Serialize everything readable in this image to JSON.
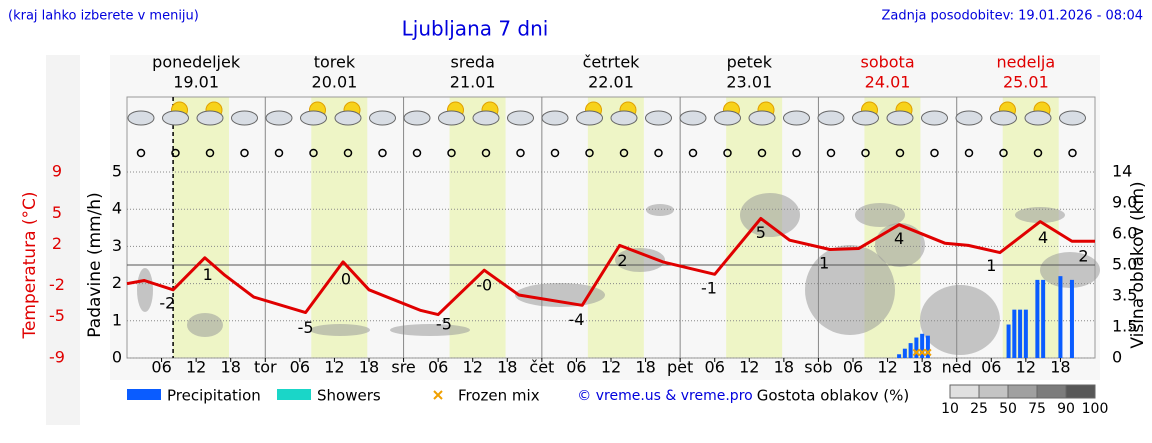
{
  "header": {
    "hint": "(kraj lahko izberete v meniju)",
    "update": "Zadnja posodobitev: 19.01.2026 - 08:04"
  },
  "chart_data": {
    "type": "meteogram",
    "title": "Ljubljana 7 dni",
    "days": [
      {
        "name": "ponedeljek",
        "date": "19.01",
        "color": "#000000"
      },
      {
        "name": "torek",
        "date": "20.01",
        "color": "#000000"
      },
      {
        "name": "sreda",
        "date": "21.01",
        "color": "#000000"
      },
      {
        "name": "četrtek",
        "date": "22.01",
        "color": "#000000"
      },
      {
        "name": "petek",
        "date": "23.01",
        "color": "#000000"
      },
      {
        "name": "sobota",
        "date": "24.01",
        "color": "#e00000"
      },
      {
        "name": "nedelja",
        "date": "25.01",
        "color": "#e00000"
      }
    ],
    "xlim": [
      0,
      168
    ],
    "xticks": [
      {
        "value": 6,
        "label": "06"
      },
      {
        "value": 12,
        "label": "12"
      },
      {
        "value": 18,
        "label": "18"
      },
      {
        "value": 24,
        "label": "tor"
      },
      {
        "value": 30,
        "label": "06"
      },
      {
        "value": 36,
        "label": "12"
      },
      {
        "value": 42,
        "label": "18"
      },
      {
        "value": 48,
        "label": "sre"
      },
      {
        "value": 54,
        "label": "06"
      },
      {
        "value": 60,
        "label": "12"
      },
      {
        "value": 66,
        "label": "18"
      },
      {
        "value": 72,
        "label": "čet"
      },
      {
        "value": 78,
        "label": "06"
      },
      {
        "value": 84,
        "label": "12"
      },
      {
        "value": 90,
        "label": "18"
      },
      {
        "value": 96,
        "label": "pet"
      },
      {
        "value": 102,
        "label": "06"
      },
      {
        "value": 108,
        "label": "12"
      },
      {
        "value": 114,
        "label": "18"
      },
      {
        "value": 120,
        "label": "sob"
      },
      {
        "value": 126,
        "label": "06"
      },
      {
        "value": 132,
        "label": "12"
      },
      {
        "value": 138,
        "label": "18"
      },
      {
        "value": 144,
        "label": "ned"
      },
      {
        "value": 150,
        "label": "06"
      },
      {
        "value": 156,
        "label": "12"
      },
      {
        "value": 162,
        "label": "18"
      }
    ],
    "now": 8,
    "ylabel": "Padavine (mm/h)",
    "ylim": [
      0,
      5
    ],
    "yticks": [
      0,
      1,
      2,
      3,
      4,
      5
    ],
    "grid": true,
    "temperature": {
      "label": "Temperatura (°C)",
      "color": "#e00000",
      "ylim": [
        -9,
        9
      ],
      "yticks": [
        9,
        5,
        2,
        -2,
        -5,
        -9
      ],
      "zero_line": 0,
      "x": [
        0,
        3,
        8,
        13.5,
        17,
        22,
        31,
        37.5,
        42,
        51,
        54,
        62,
        68,
        79,
        85.5,
        93,
        102,
        110,
        115,
        122,
        127,
        134,
        142,
        146,
        151.5,
        158.5,
        164,
        168
      ],
      "values": [
        -1.8,
        -1.5,
        -2.4,
        0.7,
        -1.0,
        -3.1,
        -4.6,
        0.3,
        -2.4,
        -4.4,
        -4.8,
        -0.5,
        -2.9,
        -3.9,
        1.9,
        0.3,
        -0.9,
        4.5,
        2.4,
        1.5,
        1.6,
        3.9,
        2.1,
        1.9,
        1.2,
        4.2,
        2.3,
        2.3
      ],
      "annotations": [
        {
          "x": 7,
          "text": "-2"
        },
        {
          "x": 14,
          "text": "1"
        },
        {
          "x": 31,
          "text": "-5"
        },
        {
          "x": 38,
          "text": "0"
        },
        {
          "x": 55,
          "text": "-5"
        },
        {
          "x": 62,
          "text": "-0"
        },
        {
          "x": 78,
          "text": "-4"
        },
        {
          "x": 86,
          "text": "2"
        },
        {
          "x": 101,
          "text": "-1"
        },
        {
          "x": 110,
          "text": "5"
        },
        {
          "x": 121,
          "text": "1"
        },
        {
          "x": 134,
          "text": "4"
        },
        {
          "x": 150,
          "text": "1"
        },
        {
          "x": 159,
          "text": "4"
        },
        {
          "x": 166,
          "text": "2"
        }
      ]
    },
    "y2label": "Višina oblakov (km)",
    "y2lim": [
      0,
      14
    ],
    "y2ticks": [
      0,
      {
        "value": 1.5,
        "label": "1.5"
      },
      {
        "value": 3.5,
        "label": "3.5"
      },
      {
        "value": 5,
        "label": "5.0"
      },
      {
        "value": 6,
        "label": "6.0"
      },
      {
        "value": 9,
        "label": "9.0"
      },
      14
    ],
    "series": [
      {
        "name": "Precipitation",
        "color": "#0a5cff",
        "x": [
          134,
          135,
          136,
          137,
          138,
          139,
          153,
          154,
          155,
          156,
          158,
          159,
          162,
          164
        ],
        "values": [
          0.1,
          0.25,
          0.4,
          0.55,
          0.65,
          0.6,
          0.9,
          1.3,
          1.3,
          1.3,
          2.1,
          2.1,
          2.2,
          2.1
        ]
      },
      {
        "name": "Showers",
        "color": "#1ad6c8",
        "x": [],
        "values": []
      },
      {
        "name": "Frozen mix",
        "color": "#f0a000",
        "x": [
          137,
          138,
          139
        ],
        "values": [
          0.15,
          0.15,
          0.15
        ]
      }
    ],
    "credit": "© vreme.us & vreme.pro",
    "cloud_density": {
      "title": "Gostota oblakov (%)",
      "levels": [
        10,
        25,
        50,
        75,
        90,
        100
      ],
      "colors": [
        "#e0e0e0",
        "#c4c4c4",
        "#a0a0a0",
        "#7c7c7c",
        "#585858"
      ]
    }
  }
}
